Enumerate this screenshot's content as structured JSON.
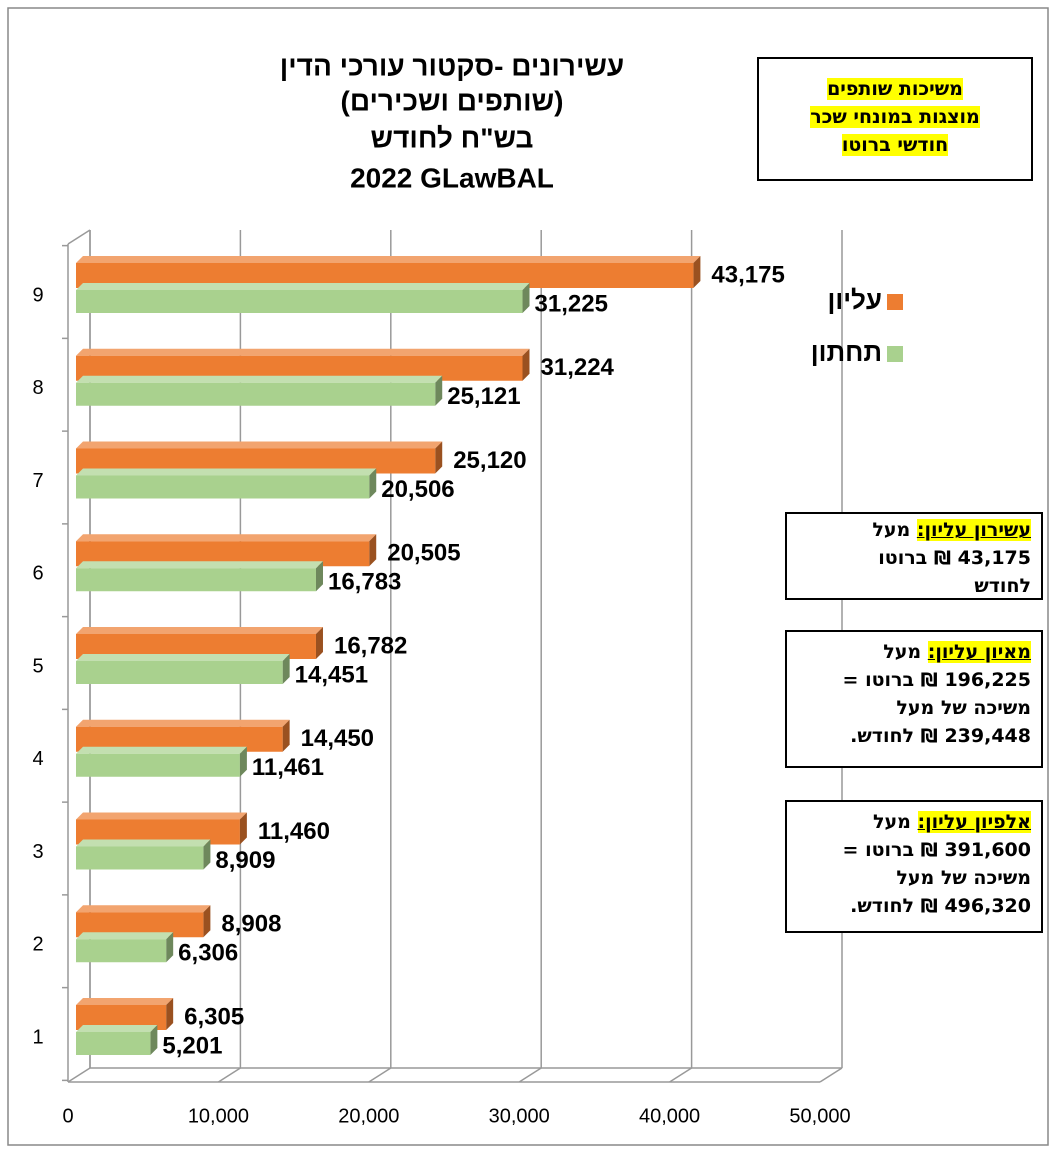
{
  "chart_data": {
    "type": "bar",
    "title": [
      "עשירונים -סקטור עורכי הדין",
      "(שותפים ושכירים)",
      "בש\"ח לחודש",
      "2022 GLawBAL"
    ],
    "categories": [
      "1",
      "2",
      "3",
      "4",
      "5",
      "6",
      "7",
      "8",
      "9"
    ],
    "series": [
      {
        "name": "עליון",
        "color": "#ed7d31",
        "values": [
          6305,
          8908,
          11460,
          14450,
          16782,
          20505,
          25120,
          31224,
          43175
        ],
        "value_labels": [
          "6,305",
          "8,908",
          "11,460",
          "14,450",
          "16,782",
          "20,505",
          "25,120",
          "31,224",
          "43,175"
        ]
      },
      {
        "name": "תחתון",
        "color": "#a9d18e",
        "values": [
          5201,
          6306,
          8909,
          11461,
          14451,
          16783,
          20506,
          25121,
          31225
        ],
        "value_labels": [
          "5,201",
          "6,306",
          "8,909",
          "11,461",
          "14,451",
          "16,783",
          "20,506",
          "25,121",
          "31,225"
        ]
      }
    ],
    "xlim": [
      0,
      50000
    ],
    "xticks": [
      0,
      {
        "value": 10000,
        "label": "10,000"
      },
      {
        "value": 20000,
        "label": "20,000"
      },
      {
        "value": 30000,
        "label": "30,000"
      },
      {
        "value": 40000,
        "label": "40,000"
      },
      {
        "value": 50000,
        "label": "50,000"
      }
    ],
    "grid": true,
    "legend": "right",
    "annotations": [
      {
        "lines": [
          "משיכות שותפים",
          "מוצגות במונחי שכר",
          "חודשי ברוטו"
        ]
      },
      {
        "highlight": "עשירון עליון:",
        "lines": [
          "מעל",
          "43,175 ₪ ברוטו",
          "לחודש"
        ]
      },
      {
        "highlight": "מאיון עליון:",
        "lines": [
          "מעל",
          "196,225 ₪ ברוטו =",
          "משיכה של מעל",
          "239,448 ₪ לחודש."
        ]
      },
      {
        "highlight": "אלפיון עליון:",
        "lines": [
          "מעל",
          "391,600 ₪ ברוטו =",
          "משיכה של מעל",
          "496,320 ₪ לחודש."
        ]
      }
    ]
  }
}
